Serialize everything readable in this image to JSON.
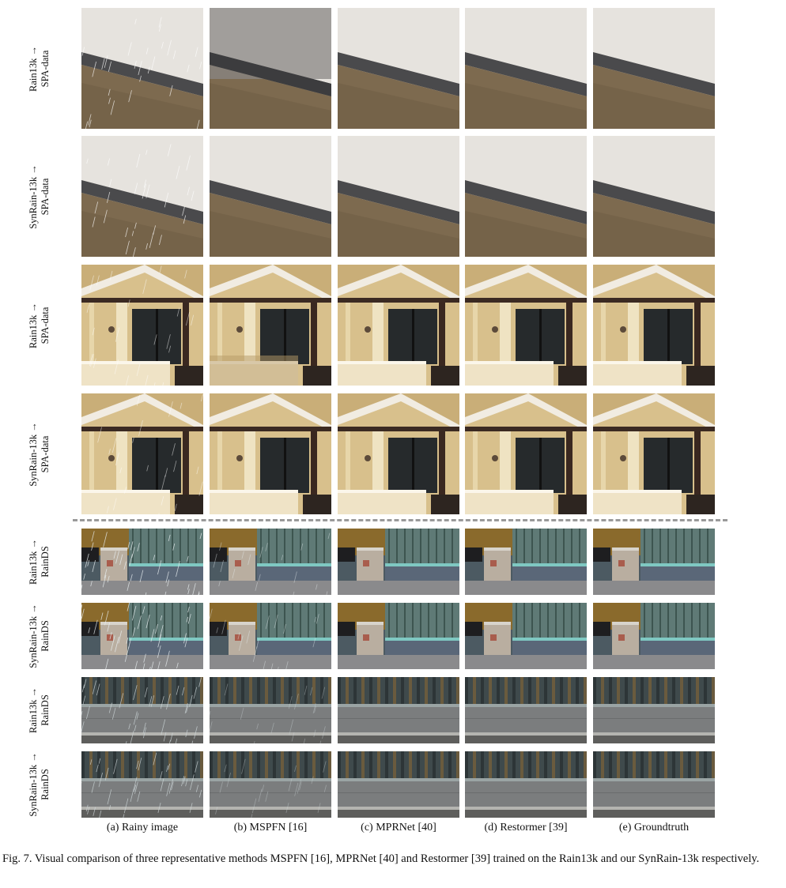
{
  "figure": {
    "columns": [
      "(a) Rainy image",
      "(b) MSPFN [16]",
      "(c) MPRNet [40]",
      "(d) Restormer [39]",
      "(e) Groundtruth"
    ],
    "rows": [
      {
        "train": "Rain13k",
        "test": "SPA-data",
        "scene": "wall-closeup"
      },
      {
        "train": "SynRain-13k",
        "test": "SPA-data",
        "scene": "wall-closeup"
      },
      {
        "train": "Rain13k",
        "test": "SPA-data",
        "scene": "house-facade"
      },
      {
        "train": "SynRain-13k",
        "test": "SPA-data",
        "scene": "house-facade"
      },
      {
        "train": "Rain13k",
        "test": "RainDS",
        "scene": "street-bin"
      },
      {
        "train": "SynRain-13k",
        "test": "RainDS",
        "scene": "street-bin"
      },
      {
        "train": "Rain13k",
        "test": "RainDS",
        "scene": "glass-fence"
      },
      {
        "train": "SynRain-13k",
        "test": "RainDS",
        "scene": "glass-fence"
      }
    ],
    "arrow": "→",
    "caption": "Fig. 7.  Visual comparison of three representative methods MSPFN [16], MPRNet [40] and Restormer [39] trained on the Rain13k and our SynRain-13k respectively."
  }
}
